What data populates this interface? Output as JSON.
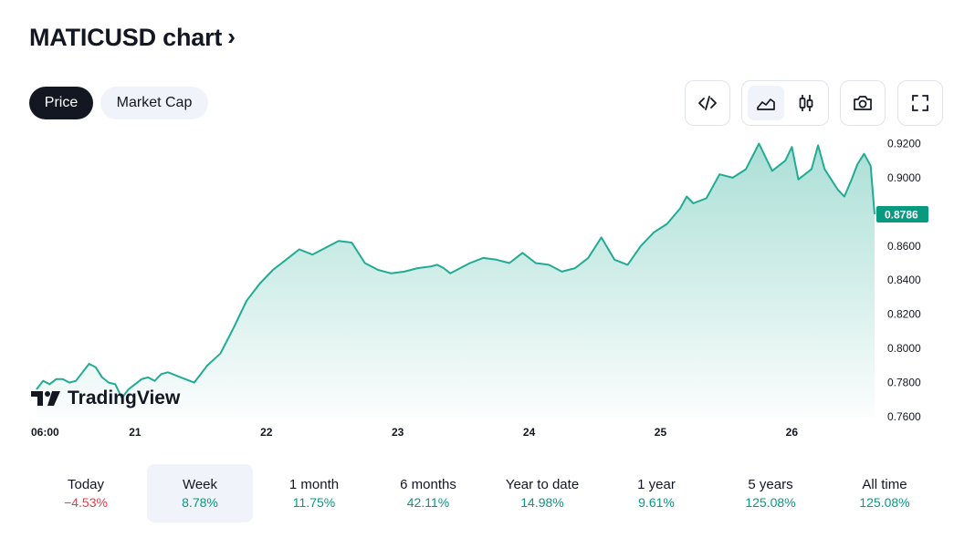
{
  "header": {
    "title": "MATICUSD chart",
    "title_chevron": "›"
  },
  "tabs": [
    {
      "label": "Price",
      "active": true
    },
    {
      "label": "Market Cap",
      "active": false
    }
  ],
  "toolbar": {
    "embed_icon": "code-icon",
    "area_icon": "area-chart-icon",
    "candles_icon": "candlestick-icon",
    "snapshot_icon": "camera-icon",
    "fullscreen_icon": "fullscreen-icon"
  },
  "branding": {
    "logo_text": "TradingView"
  },
  "colors": {
    "line": "#22ab94",
    "accent": "#089981",
    "negative": "#f23645",
    "text": "#131722",
    "active_tab_bg": "#131722",
    "inactive_tab_bg": "#f0f3fa"
  },
  "chart_data": {
    "type": "area",
    "title": "MATICUSD chart",
    "series": [
      {
        "name": "MATICUSD",
        "x_days": [
          0,
          0.05,
          0.1,
          0.15,
          0.2,
          0.25,
          0.3,
          0.35,
          0.4,
          0.45,
          0.5,
          0.55,
          0.6,
          0.65,
          0.7,
          0.75,
          0.8,
          0.85,
          0.9,
          0.95,
          1.0,
          1.1,
          1.2,
          1.3,
          1.4,
          1.5,
          1.6,
          1.7,
          1.8,
          1.9,
          2.0,
          2.1,
          2.2,
          2.3,
          2.4,
          2.5,
          2.6,
          2.7,
          2.8,
          2.9,
          3.0,
          3.05,
          3.1,
          3.15,
          3.2,
          3.3,
          3.4,
          3.5,
          3.6,
          3.7,
          3.8,
          3.9,
          4.0,
          4.1,
          4.2,
          4.3,
          4.4,
          4.5,
          4.6,
          4.7,
          4.8,
          4.9,
          4.95,
          5.0,
          5.1,
          5.2,
          5.3,
          5.4,
          5.5,
          5.6,
          5.7,
          5.75,
          5.8,
          5.9,
          5.95,
          6.0,
          6.05,
          6.1,
          6.15,
          6.2,
          6.25,
          6.3,
          6.35,
          6.38
        ],
        "values": [
          0.776,
          0.781,
          0.779,
          0.782,
          0.782,
          0.78,
          0.781,
          0.786,
          0.791,
          0.789,
          0.783,
          0.78,
          0.779,
          0.771,
          0.776,
          0.779,
          0.782,
          0.783,
          0.781,
          0.785,
          0.786,
          0.783,
          0.78,
          0.79,
          0.797,
          0.812,
          0.828,
          0.838,
          0.846,
          0.852,
          0.858,
          0.855,
          0.859,
          0.863,
          0.862,
          0.85,
          0.846,
          0.844,
          0.845,
          0.847,
          0.848,
          0.849,
          0.847,
          0.844,
          0.846,
          0.85,
          0.853,
          0.852,
          0.85,
          0.856,
          0.85,
          0.849,
          0.845,
          0.847,
          0.853,
          0.865,
          0.852,
          0.849,
          0.86,
          0.868,
          0.873,
          0.882,
          0.889,
          0.885,
          0.888,
          0.902,
          0.9,
          0.905,
          0.92,
          0.904,
          0.91,
          0.918,
          0.899,
          0.905,
          0.919,
          0.905,
          0.899,
          0.893,
          0.889,
          0.898,
          0.908,
          0.914,
          0.907,
          0.8786
        ]
      }
    ],
    "last_value_label": "0.8786",
    "ylim": [
      0.76,
      0.924
    ],
    "y_ticks": [
      "0.9200",
      "0.9000",
      "0.8800",
      "0.8600",
      "0.8400",
      "0.8200",
      "0.8000",
      "0.7800",
      "0.7600"
    ],
    "y_tick_values": [
      0.92,
      0.9,
      0.88,
      0.86,
      0.84,
      0.82,
      0.8,
      0.78,
      0.76
    ],
    "x_ticks": [
      "06:00",
      "21",
      "22",
      "23",
      "24",
      "25",
      "26"
    ],
    "x_tick_days": [
      0,
      0.75,
      1.75,
      2.75,
      3.75,
      4.75,
      5.75
    ],
    "xlim": [
      0,
      6.38
    ]
  },
  "periods": [
    {
      "label": "Today",
      "value": "−4.53%",
      "negative": true,
      "selected": false
    },
    {
      "label": "Week",
      "value": "8.78%",
      "negative": false,
      "selected": true
    },
    {
      "label": "1 month",
      "value": "11.75%",
      "negative": false,
      "selected": false
    },
    {
      "label": "6 months",
      "value": "42.11%",
      "negative": false,
      "selected": false
    },
    {
      "label": "Year to date",
      "value": "14.98%",
      "negative": false,
      "selected": false
    },
    {
      "label": "1 year",
      "value": "9.61%",
      "negative": false,
      "selected": false
    },
    {
      "label": "5 years",
      "value": "125.08%",
      "negative": false,
      "selected": false
    },
    {
      "label": "All time",
      "value": "125.08%",
      "negative": false,
      "selected": false
    }
  ]
}
